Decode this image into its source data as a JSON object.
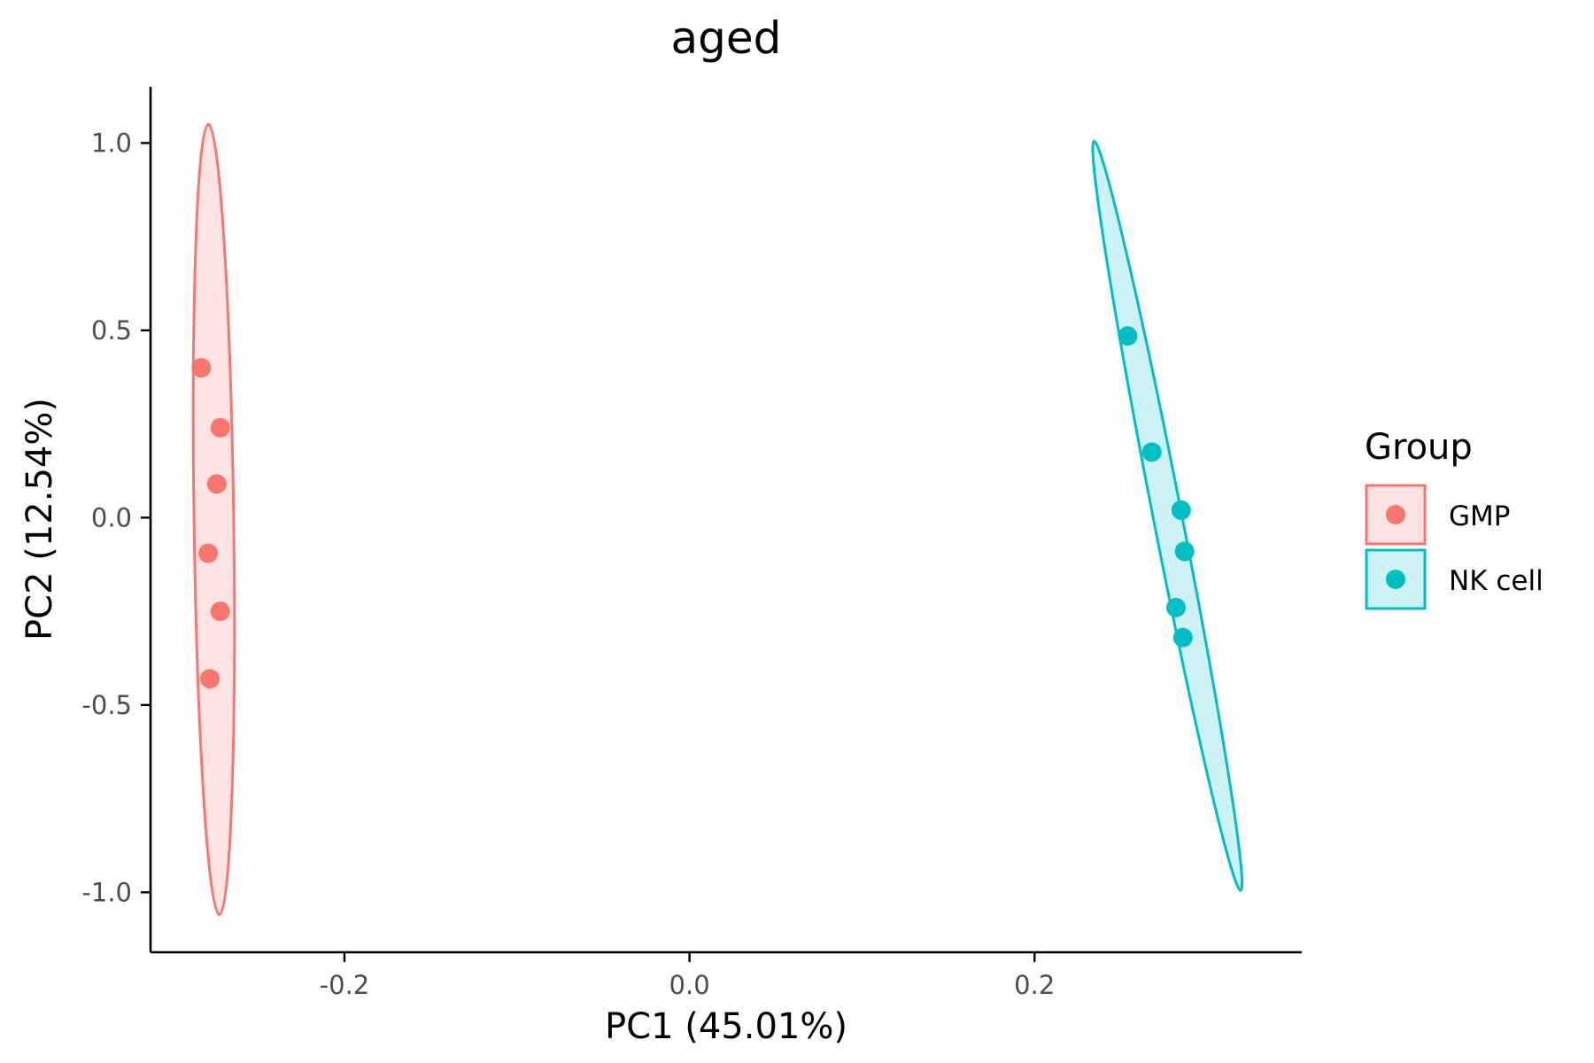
{
  "chart_data": {
    "type": "scatter",
    "title": "aged",
    "xlabel": "PC1 (45.01%)",
    "ylabel": "PC2 (12.54%)",
    "xlim": [
      -0.3124,
      0.3549
    ],
    "ylim": [
      -1.16,
      1.15
    ],
    "x_ticks": [
      -0.2,
      0.0,
      0.2
    ],
    "x_tick_labels": [
      "-0.2",
      "0.0",
      "0.2"
    ],
    "y_ticks": [
      1.0,
      0.5,
      0.0,
      -0.5,
      -1.0
    ],
    "y_tick_labels": [
      "1.0",
      "0.5",
      "0.0",
      "-0.5",
      "-1.0"
    ],
    "grid": false,
    "legend": {
      "title": "Group",
      "placement": "right"
    },
    "series": [
      {
        "name": "GMP",
        "color": "#F8766D",
        "fill": "#FDE3E1",
        "points": [
          {
            "x": -0.283,
            "y": 0.4
          },
          {
            "x": -0.272,
            "y": 0.24
          },
          {
            "x": -0.274,
            "y": 0.09
          },
          {
            "x": -0.279,
            "y": -0.095
          },
          {
            "x": -0.272,
            "y": -0.25
          },
          {
            "x": -0.278,
            "y": -0.43
          }
        ],
        "ellipse": {
          "cx": -0.2775,
          "cy": -0.005,
          "rx_top": -0.2789,
          "ry_top": 1.05,
          "rx_bottom": -0.2725,
          "ry_bottom": -1.06,
          "half_width": 0.0115
        }
      },
      {
        "name": "NK cell",
        "color": "#00BFC4",
        "fill": "#CCF2F3",
        "points": [
          {
            "x": 0.254,
            "y": 0.485
          },
          {
            "x": 0.268,
            "y": 0.175
          },
          {
            "x": 0.285,
            "y": 0.02
          },
          {
            "x": 0.287,
            "y": -0.09
          },
          {
            "x": 0.282,
            "y": -0.24
          },
          {
            "x": 0.286,
            "y": -0.32
          }
        ],
        "ellipse": {
          "rx_top": 0.2345,
          "ry_top": 1.005,
          "rx_bottom": 0.3195,
          "ry_bottom": -0.995,
          "half_width": 0.0083
        }
      }
    ]
  }
}
